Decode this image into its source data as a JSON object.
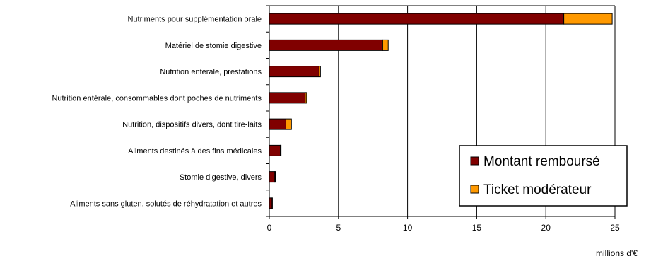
{
  "chart_data": {
    "type": "bar",
    "orientation": "horizontal",
    "stacked": true,
    "categories": [
      "Nutriments pour supplémentation orale",
      "Matériel de stomie digestive",
      "Nutrition entérale, prestations",
      "Nutrition entérale, consommables dont poches de nutriments",
      "Nutrition, dispositifs divers, dont tire-laits",
      "Aliments destinés à des fins médicales",
      "Stomie digestive, divers",
      "Aliments sans gluten, solutés de réhydratation et autres"
    ],
    "series": [
      {
        "name": "Montant remboursé",
        "color": "#800000",
        "values": [
          21.3,
          8.2,
          3.6,
          2.6,
          1.2,
          0.8,
          0.4,
          0.2
        ]
      },
      {
        "name": "Ticket modérateur",
        "color": "#ff9900",
        "values": [
          3.5,
          0.4,
          0.1,
          0.1,
          0.4,
          0.05,
          0.05,
          0.02
        ]
      }
    ],
    "xlim": [
      0,
      25
    ],
    "xticks": [
      0,
      5,
      10,
      15,
      20,
      25
    ],
    "unit": "millions d'€",
    "grid": true,
    "legend_position": "bottom-right"
  }
}
